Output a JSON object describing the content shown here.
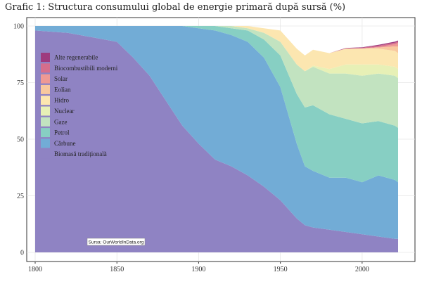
{
  "chart_data": {
    "type": "area",
    "stacked": true,
    "title": "Grafic 1: Structura consumului global de energie primară după sursă (%)",
    "xlabel": "",
    "ylabel": "",
    "xlim": [
      1800,
      2022
    ],
    "ylim": [
      0,
      100
    ],
    "x_ticks": [
      1800,
      1850,
      1900,
      1950,
      2000
    ],
    "y_ticks": [
      0,
      25,
      50,
      75,
      100
    ],
    "grid": true,
    "legend_position": "top-left inside",
    "source_note": "Sursa: OurWorldInData.org",
    "x": [
      1800,
      1820,
      1850,
      1860,
      1870,
      1880,
      1890,
      1900,
      1910,
      1920,
      1930,
      1940,
      1950,
      1960,
      1965,
      1970,
      1980,
      1990,
      2000,
      2010,
      2020,
      2022
    ],
    "series": [
      {
        "name": "Biomasă tradițională",
        "color": "#8f83c3",
        "values": [
          98,
          97,
          93,
          86,
          78,
          67,
          56,
          48,
          41,
          38,
          34,
          29,
          23,
          15,
          12,
          11,
          10,
          9,
          8,
          7,
          6,
          6
        ]
      },
      {
        "name": "Cărbune",
        "color": "#72acd6",
        "values": [
          2,
          3,
          7,
          14,
          22,
          33,
          44,
          51,
          57,
          58,
          59,
          57,
          50,
          33,
          26,
          25,
          23,
          24,
          23,
          27,
          26,
          25
        ]
      },
      {
        "name": "Petrol",
        "color": "#87cfc3",
        "values": [
          0,
          0,
          0,
          0,
          0,
          0,
          0,
          1,
          2,
          3,
          5,
          8,
          14,
          22,
          26,
          29,
          28,
          26,
          26,
          24,
          24,
          24
        ]
      },
      {
        "name": "Gaze",
        "color": "#c2e3c0",
        "values": [
          0,
          0,
          0,
          0,
          0,
          0,
          0,
          0,
          0,
          1,
          1,
          3,
          6,
          13,
          16,
          17,
          18,
          20,
          21,
          21,
          22,
          22
        ]
      },
      {
        "name": "Nuclear",
        "color": "#e7f0b6",
        "values": [
          0,
          0,
          0,
          0,
          0,
          0,
          0,
          0,
          0,
          0,
          0,
          0,
          0,
          0,
          0,
          0.5,
          2,
          4,
          5,
          4,
          4,
          4
        ]
      },
      {
        "name": "Hidro",
        "color": "#fce6b0",
        "values": [
          0,
          0,
          0,
          0,
          0,
          0,
          0,
          0,
          0,
          0,
          1,
          2,
          5,
          7,
          7,
          7,
          7,
          7,
          7,
          7,
          7,
          7
        ]
      },
      {
        "name": "Eolian",
        "color": "#f8c89e",
        "values": [
          0,
          0,
          0,
          0,
          0,
          0,
          0,
          0,
          0,
          0,
          0,
          0,
          0,
          0,
          0,
          0,
          0,
          0,
          0.1,
          0.5,
          2,
          3
        ]
      },
      {
        "name": "Solar",
        "color": "#ee9994",
        "values": [
          0,
          0,
          0,
          0,
          0,
          0,
          0,
          0,
          0,
          0,
          0,
          0,
          0,
          0,
          0,
          0,
          0,
          0,
          0,
          0.2,
          1,
          1.5
        ]
      },
      {
        "name": "Biocombustibili moderni",
        "color": "#d56e8c",
        "values": [
          0,
          0,
          0,
          0,
          0,
          0,
          0,
          0,
          0,
          0,
          0,
          0,
          0,
          0,
          0,
          0,
          0,
          0.2,
          0.3,
          0.6,
          0.6,
          0.6
        ]
      },
      {
        "name": "Alte regenerabile",
        "color": "#9e3b7e",
        "values": [
          0,
          0,
          0,
          0,
          0,
          0,
          0,
          0,
          0,
          0,
          0,
          0,
          0,
          0,
          0,
          0,
          0,
          0.1,
          0.2,
          0.4,
          0.5,
          0.5
        ]
      }
    ]
  }
}
